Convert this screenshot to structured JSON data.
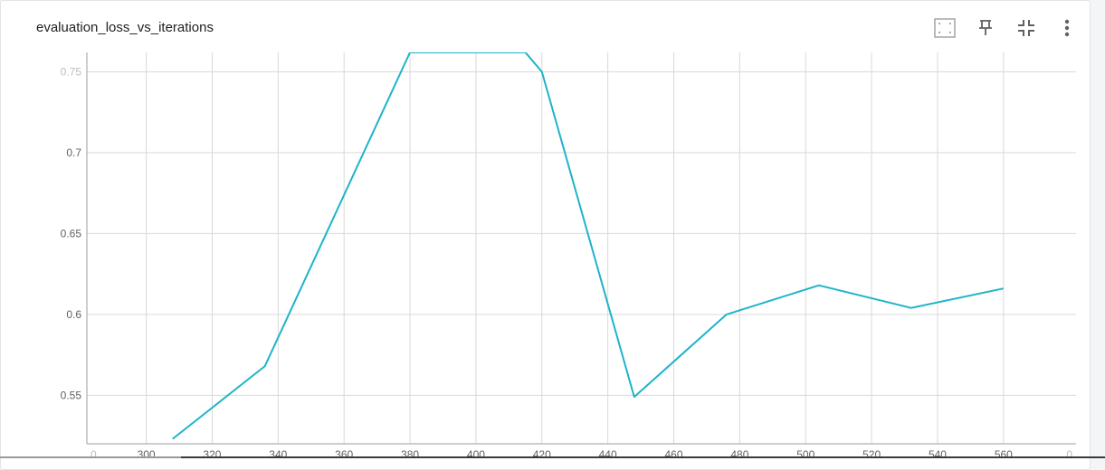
{
  "card": {
    "title": "evaluation_loss_vs_iterations"
  },
  "toolbar": {
    "icons": [
      "fit-domain-icon",
      "pin-icon",
      "collapse-icon",
      "more-vert-icon"
    ]
  },
  "colors": {
    "series": "#1eb4c8",
    "grid": "#d9d9d9",
    "axis": "#9e9e9e"
  },
  "chart_data": {
    "type": "line",
    "title": "evaluation_loss_vs_iterations",
    "xlabel": "",
    "ylabel": "",
    "grid": true,
    "xlim": [
      282,
      582
    ],
    "ylim": [
      0.52,
      0.762
    ],
    "xticks": [
      300,
      320,
      340,
      360,
      380,
      400,
      420,
      440,
      460,
      480,
      500,
      520,
      540,
      560
    ],
    "xtick_labels_faded": [
      "0",
      "0"
    ],
    "yticks": [
      0.55,
      0.6,
      0.65,
      0.7,
      0.75
    ],
    "ytick_labels": [
      "0.55",
      "0.6",
      "0.65",
      "0.7",
      "0.75"
    ],
    "series": [
      {
        "x": [
          308,
          336,
          380,
          415,
          420,
          448,
          476,
          504,
          532,
          560
        ],
        "y": [
          0.523,
          0.568,
          0.762,
          0.762,
          0.75,
          0.549,
          0.6,
          0.618,
          0.604,
          0.616
        ]
      }
    ]
  }
}
